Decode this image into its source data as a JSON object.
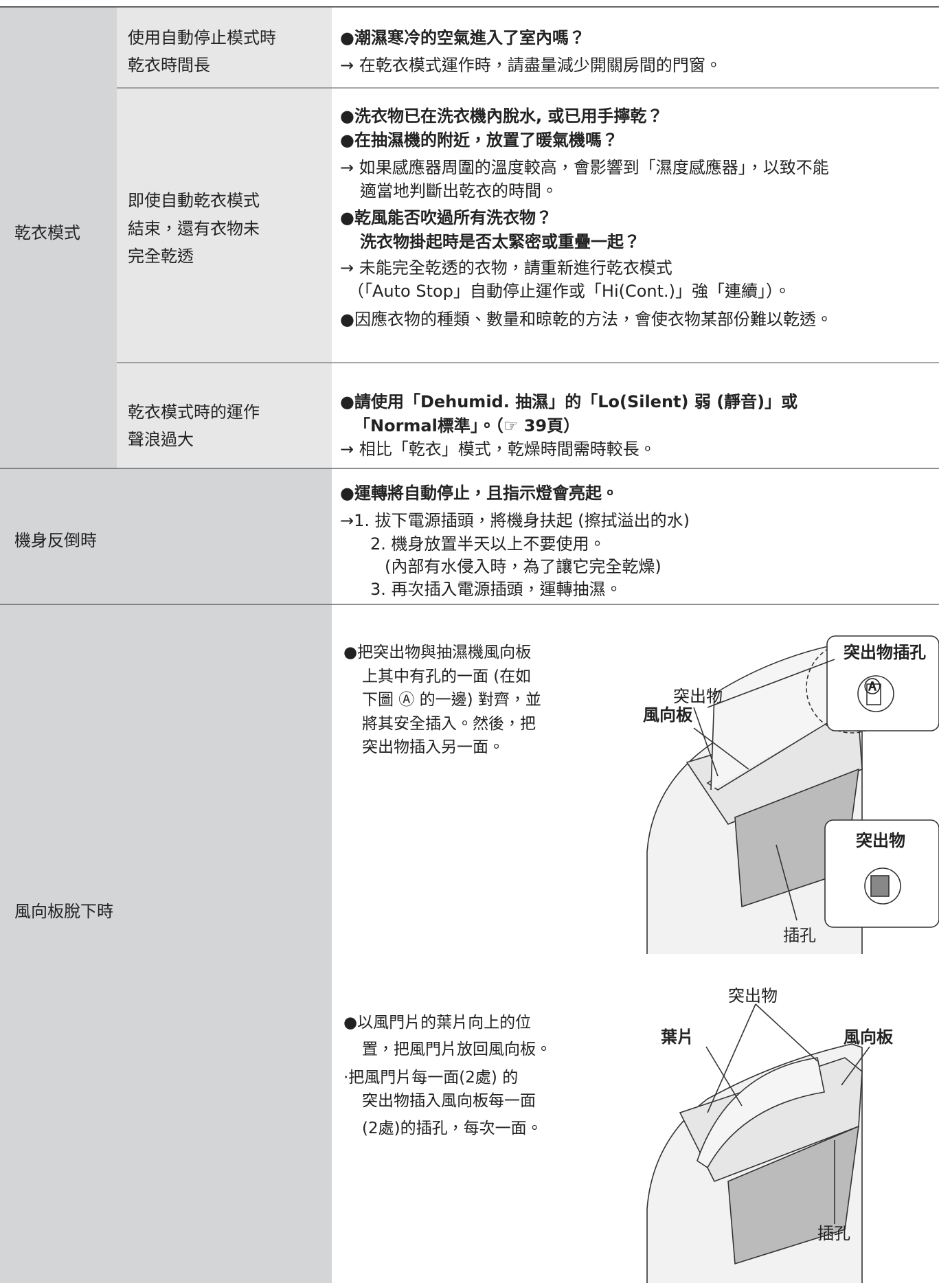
{
  "table": {
    "group": "乾衣模式",
    "rows": [
      {
        "problem": [
          "使用自動停止模式時",
          "乾衣時間長"
        ],
        "lines": [
          "●潮濕寒冷的空氣進入了室內嗎？",
          "→ 在乾衣模式運作時，請盡量減少開關房間的門窗。"
        ]
      },
      {
        "problem": [
          "即使自動乾衣模式",
          "結束，還有衣物未",
          "完全乾透"
        ],
        "lines": [
          "●洗衣物已在洗衣機內脫水, 或已用手擰乾？",
          "●在抽濕機的附近，放置了暖氣機嗎？",
          "→ 如果感應器周圍的溫度較高，會影響到「濕度感應器」，以致不能",
          "適當地判斷出乾衣的時間。",
          "●乾風能否吹過所有洗衣物？",
          "洗衣物掛起時是否太緊密或重疊一起？",
          "→ 未能完全乾透的衣物，請重新進行乾衣模式",
          "（「Auto Stop」自動停止運作或「Hi(Cont.)」強「連續」）。",
          "●因應衣物的種類、數量和晾乾的方法，會使衣物某部份難以乾透。"
        ]
      },
      {
        "problem": [
          "乾衣模式時的運作",
          "聲浪過大"
        ],
        "lines": [
          "●請使用「Dehumid. 抽濕」的「Lo(Silent) 弱 (靜音)」或",
          "「Normal標準」。（☞ 39頁）",
          "→ 相比「乾衣」模式，乾燥時間需時較長。"
        ]
      }
    ]
  },
  "fall": {
    "problem": "機身反倒時",
    "lines": [
      "●運轉將自動停止，且指示燈會亮起。",
      "→1. 拔下電源插頭，將機身扶起 (擦拭溢出的水)",
      "2. 機身放置半天以上不要使用。",
      "(內部有水侵入時，為了讓它完全乾燥)",
      "3. 再次插入電源插頭，運轉抽濕。"
    ]
  },
  "louver": {
    "problem": "風向板脫下時",
    "steps": [
      {
        "lines": [
          "●把突出物與抽濕機風向板",
          "上其中有孔的一面 (在如",
          "下圖 Ⓐ 的一邊) 對齊，並",
          "將其安全插入。然後，把",
          "突出物插入另一面。"
        ],
        "labels": [
          "突出物插孔",
          "突出物",
          "風向板",
          "Ⓐ",
          "突出物",
          "插孔"
        ]
      },
      {
        "lines": [
          "●以風門片的葉片向上的位",
          "置，把風門片放回風向板。",
          "·把風門片每一面(2處) 的",
          "突出物插入風向板每一面",
          "(2處)的插孔，每次一面。"
        ],
        "labels": [
          "突出物",
          "葉片",
          "風向板",
          "插孔"
        ]
      }
    ]
  }
}
